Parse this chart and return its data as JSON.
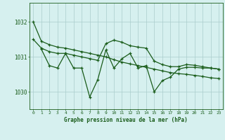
{
  "title": "Graphe pression niveau de la mer (hPa)",
  "bg_color": "#d6f0f0",
  "plot_bg_color": "#d6f0f0",
  "bottom_bg_color": "#c8e8c8",
  "grid_color": "#aacccc",
  "line_color": "#1a5c1a",
  "xlim": [
    -0.5,
    23.5
  ],
  "ylim": [
    1029.5,
    1032.55
  ],
  "yticks": [
    1030,
    1031,
    1032
  ],
  "xticks": [
    0,
    1,
    2,
    3,
    4,
    5,
    6,
    7,
    8,
    9,
    10,
    11,
    12,
    13,
    14,
    15,
    16,
    17,
    18,
    19,
    20,
    21,
    22,
    23
  ],
  "line1_y": [
    1032.0,
    1031.45,
    1031.35,
    1031.28,
    1031.25,
    1031.2,
    1031.15,
    1031.1,
    1031.05,
    1031.0,
    1030.92,
    1030.85,
    1030.8,
    1030.75,
    1030.7,
    1030.65,
    1030.6,
    1030.55,
    1030.52,
    1030.5,
    1030.47,
    1030.44,
    1030.4,
    1030.38
  ],
  "line2_x": [
    0,
    1,
    2,
    3,
    4,
    5,
    6,
    7,
    8,
    9,
    10,
    11,
    12,
    13,
    14,
    15,
    16,
    17,
    18,
    19,
    20,
    21,
    22,
    23
  ],
  "line2_y": [
    1031.5,
    1031.25,
    1031.15,
    1031.1,
    1031.1,
    1031.05,
    1031.0,
    1030.95,
    1030.9,
    1031.38,
    1031.48,
    1031.42,
    1031.32,
    1031.28,
    1031.25,
    1030.88,
    1030.78,
    1030.72,
    1030.72,
    1030.78,
    1030.76,
    1030.72,
    1030.68,
    1030.65
  ],
  "line3_x": [
    1,
    2,
    3,
    4,
    5,
    6,
    7,
    8,
    9,
    10,
    11,
    12,
    13,
    14,
    15,
    16,
    17,
    18,
    19,
    20,
    21,
    22,
    23
  ],
  "line3_y": [
    1031.22,
    1030.75,
    1030.68,
    1031.1,
    1030.68,
    1030.68,
    1029.85,
    1030.35,
    1031.2,
    1030.68,
    1030.95,
    1031.1,
    1030.68,
    1030.75,
    1030.0,
    1030.32,
    1030.42,
    1030.65,
    1030.7,
    1030.7,
    1030.68,
    1030.68,
    1030.65
  ]
}
